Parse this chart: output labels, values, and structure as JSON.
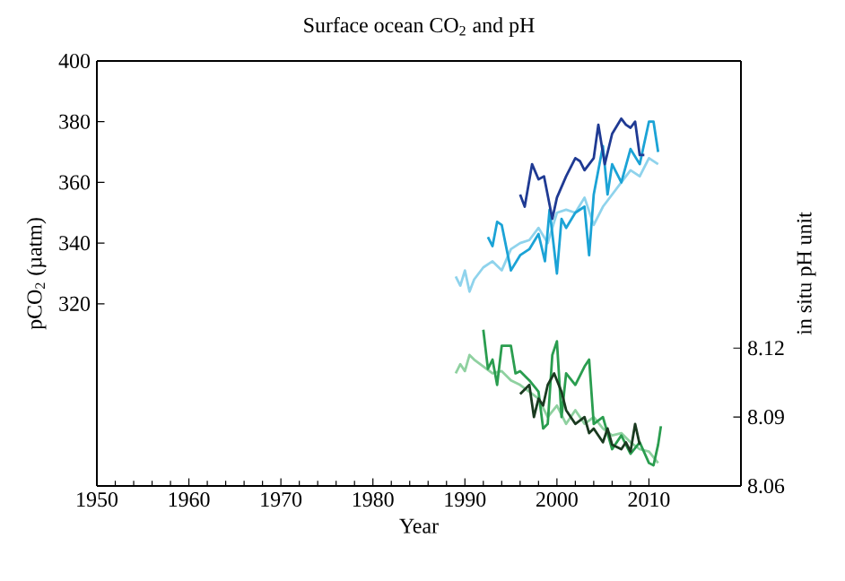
{
  "chart_data": {
    "type": "line",
    "title": "Surface ocean CO$_{2}$ and pH",
    "xlabel": "Year",
    "ylabel": "pCO$_{2}$ (µatm)",
    "y2label": "in situ pH unit",
    "xlim": [
      1950,
      2020
    ],
    "xticks": [
      1950,
      1960,
      1970,
      1980,
      1990,
      2000,
      2010
    ],
    "ylim": [
      260,
      400
    ],
    "yticks": [
      320,
      340,
      360,
      380,
      400
    ],
    "y2lim": [
      8.06,
      8.245
    ],
    "y2ticks": [
      8.06,
      8.09,
      8.12
    ],
    "grid": false,
    "marker": "none",
    "line_style": "solid",
    "series": [
      {
        "color": "#8fd3ec",
        "x": [
          1989,
          1989.5,
          1990,
          1990.5,
          1991,
          1992,
          1993,
          1994,
          1995,
          1996,
          1997,
          1998,
          1999,
          2000,
          2001,
          2002,
          2003,
          2004,
          2005,
          2006,
          2007,
          2008,
          2009,
          2010,
          2011
        ],
        "values": [
          329,
          326,
          331,
          324,
          328,
          332,
          334,
          331,
          338,
          340,
          341,
          345,
          340,
          350,
          351,
          350,
          355,
          346,
          352,
          356,
          360,
          364,
          362,
          368,
          366
        ]
      },
      {
        "color": "#1ba3d6",
        "x": [
          1992.5,
          1993,
          1993.5,
          1994,
          1995,
          1996,
          1997,
          1998,
          1998.7,
          1999.2,
          2000,
          2000.5,
          2001,
          2002,
          2003,
          2003.5,
          2004,
          2005,
          2005.5,
          2006,
          2007,
          2008,
          2009,
          2010,
          2010.5,
          2011
        ],
        "values": [
          342,
          339,
          347,
          346,
          331,
          336,
          338,
          343,
          334,
          351,
          330,
          348,
          345,
          350,
          352,
          336,
          356,
          372,
          356,
          366,
          360,
          371,
          366,
          380,
          380,
          370
        ]
      },
      {
        "color": "#1f3a93",
        "x": [
          1996,
          1996.5,
          1997.3,
          1998,
          1998.6,
          1999.5,
          2000,
          2001,
          2002,
          2002.5,
          2003,
          2004,
          2004.5,
          2005.2,
          2006,
          2007,
          2007.5,
          2008,
          2008.5,
          2009,
          2009.5
        ],
        "values": [
          356,
          352,
          366,
          361,
          362,
          348,
          355,
          362,
          368,
          367,
          364,
          368,
          379,
          366,
          376,
          381,
          379,
          378,
          380,
          369,
          369
        ]
      },
      {
        "color": "#8fd1a0",
        "axis": "y2",
        "x": [
          1989,
          1989.5,
          1990,
          1990.5,
          1991,
          1992,
          1993,
          1994,
          1995,
          1996,
          1997,
          1998,
          1999,
          2000,
          2001,
          2002,
          2003,
          2004,
          2005,
          2006,
          2007,
          2008,
          2009,
          2010,
          2011
        ],
        "values": [
          8.109,
          8.113,
          8.11,
          8.117,
          8.115,
          8.112,
          8.109,
          8.11,
          8.106,
          8.104,
          8.101,
          8.098,
          8.09,
          8.095,
          8.087,
          8.093,
          8.087,
          8.09,
          8.085,
          8.082,
          8.083,
          8.079,
          8.076,
          8.075,
          8.07
        ]
      },
      {
        "color": "#2a9d4f",
        "axis": "y2",
        "x": [
          1992,
          1992.5,
          1993,
          1993.5,
          1994,
          1995,
          1995.5,
          1996,
          1997,
          1998,
          1998.5,
          1999,
          1999.5,
          2000,
          2000.5,
          2001,
          2002,
          2003,
          2003.5,
          2004,
          2005,
          2006,
          2007,
          2008,
          2009,
          2010,
          2010.5,
          2011,
          2011.3
        ],
        "values": [
          8.128,
          8.111,
          8.115,
          8.104,
          8.121,
          8.121,
          8.109,
          8.11,
          8.106,
          8.101,
          8.085,
          8.087,
          8.117,
          8.123,
          8.09,
          8.109,
          8.104,
          8.112,
          8.115,
          8.087,
          8.09,
          8.076,
          8.082,
          8.074,
          8.079,
          8.07,
          8.069,
          8.078,
          8.086
        ]
      },
      {
        "color": "#1a3a20",
        "axis": "y2",
        "x": [
          1996,
          1997,
          1997.5,
          1998,
          1998.5,
          1999,
          1999.7,
          2000.5,
          2001,
          2002,
          2003,
          2003.5,
          2004,
          2005,
          2005.5,
          2006,
          2007,
          2007.5,
          2008,
          2008.5,
          2009
        ],
        "values": [
          8.1,
          8.104,
          8.09,
          8.098,
          8.095,
          8.104,
          8.109,
          8.101,
          8.093,
          8.087,
          8.09,
          8.083,
          8.085,
          8.079,
          8.085,
          8.078,
          8.076,
          8.079,
          8.075,
          8.087,
          8.078
        ]
      }
    ]
  }
}
